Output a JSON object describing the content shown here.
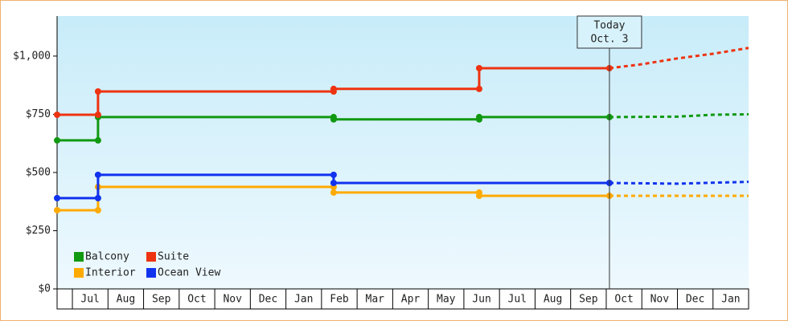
{
  "chart_data": {
    "type": "step-line",
    "categories": [
      "Jul",
      "Aug",
      "Sep",
      "Oct",
      "Nov",
      "Dec",
      "Jan",
      "Feb",
      "Mar",
      "Apr",
      "May",
      "Jun",
      "Jul",
      "Aug",
      "Sep",
      "Oct",
      "Nov",
      "Dec",
      "Jan"
    ],
    "xlim": [
      -0.43,
      19
    ],
    "ylim": [
      0,
      1172
    ],
    "yticks": [
      {
        "value": 0,
        "label": "$0"
      },
      {
        "value": 250,
        "label": "$250"
      },
      {
        "value": 500,
        "label": "$500"
      },
      {
        "value": 750,
        "label": "$750"
      },
      {
        "value": 1000,
        "label": "$1,000"
      }
    ],
    "today": {
      "x": 15.09,
      "label": "Today",
      "date": "Oct. 3"
    },
    "legend": "lower left",
    "series": [
      {
        "name": "Balcony",
        "color": "#119911",
        "x": [
          -0.43,
          0.72,
          0.72,
          7.34,
          7.34,
          11.43,
          11.43,
          15.09
        ],
        "values": [
          638,
          638,
          738,
          738,
          728,
          728,
          738,
          738
        ],
        "forecast_x": [
          15.09,
          17,
          18,
          19
        ],
        "forecast_values": [
          738,
          740,
          748,
          750
        ]
      },
      {
        "name": "Suite",
        "color": "#ee3311",
        "x": [
          -0.43,
          0.72,
          0.72,
          7.34,
          7.34,
          11.43,
          11.43,
          15.09
        ],
        "values": [
          748,
          748,
          848,
          848,
          859,
          859,
          948,
          948
        ],
        "forecast_x": [
          15.09,
          16,
          17,
          18,
          19
        ],
        "forecast_values": [
          948,
          965,
          990,
          1010,
          1035
        ]
      },
      {
        "name": "Interior",
        "color": "#ffaa00",
        "x": [
          -0.43,
          0.72,
          0.72,
          7.34,
          7.34,
          11.43,
          11.43,
          15.09
        ],
        "values": [
          338,
          338,
          438,
          438,
          414,
          414,
          400,
          400
        ],
        "forecast_x": [
          15.09,
          19
        ],
        "forecast_values": [
          400,
          400
        ]
      },
      {
        "name": "Ocean View",
        "color": "#1133ee",
        "x": [
          -0.43,
          0.72,
          0.72,
          7.34,
          7.34,
          15.09
        ],
        "values": [
          390,
          390,
          490,
          490,
          455,
          455
        ],
        "forecast_x": [
          15.09,
          17,
          19
        ],
        "forecast_values": [
          455,
          452,
          460
        ]
      }
    ]
  }
}
